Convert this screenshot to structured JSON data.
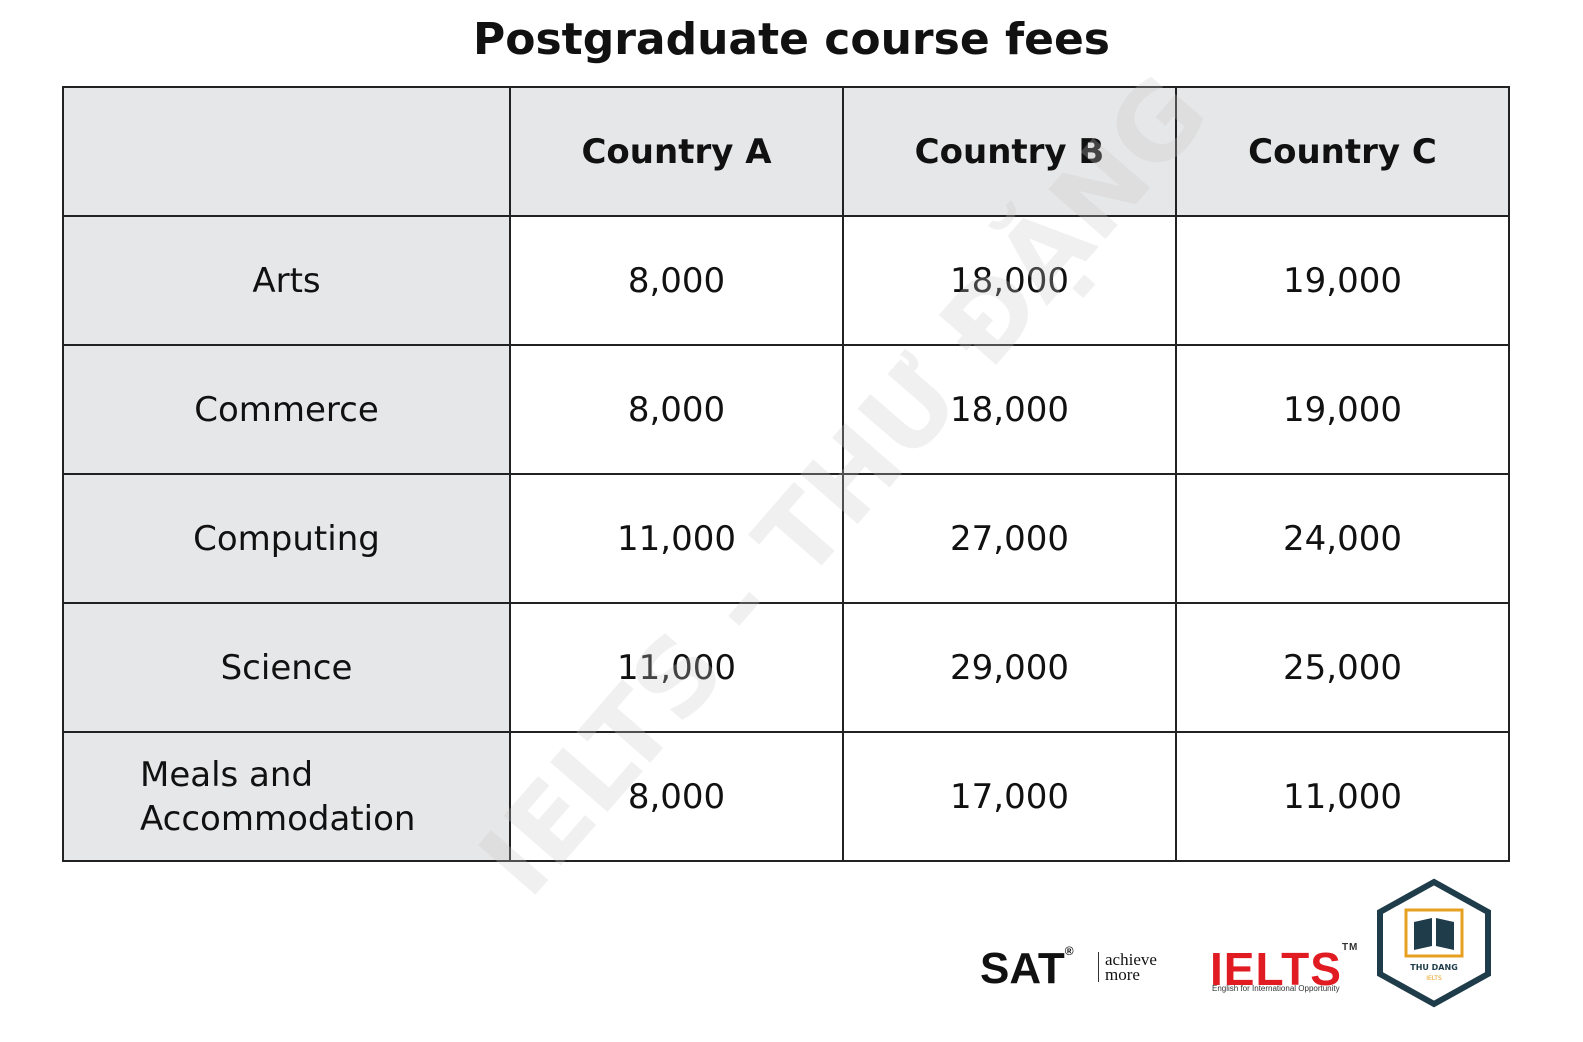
{
  "title": "Postgraduate course fees",
  "table": {
    "header": [
      "",
      "Country A",
      "Country B",
      "Country C"
    ],
    "rows": [
      [
        "Arts",
        "8,000",
        "18,000",
        "19,000"
      ],
      [
        "Commerce",
        "8,000",
        "18,000",
        "19,000"
      ],
      [
        "Computing",
        "11,000",
        "27,000",
        "24,000"
      ],
      [
        "Science",
        "11,000",
        "29,000",
        "25,000"
      ],
      [
        "Meals and Accommodation",
        "8,000",
        "17,000",
        "11,000"
      ]
    ]
  },
  "watermark": "IELTS - THƯ ĐẶNG",
  "logos": {
    "sat": {
      "name": "SAT",
      "mark": "®",
      "tagline": "achieve more"
    },
    "ielts": {
      "name": "IELTS",
      "mark": "TM",
      "tagline": "English for International Opportunity"
    },
    "badge": {
      "name": "THU DANG",
      "sub": "IELTS"
    }
  }
}
